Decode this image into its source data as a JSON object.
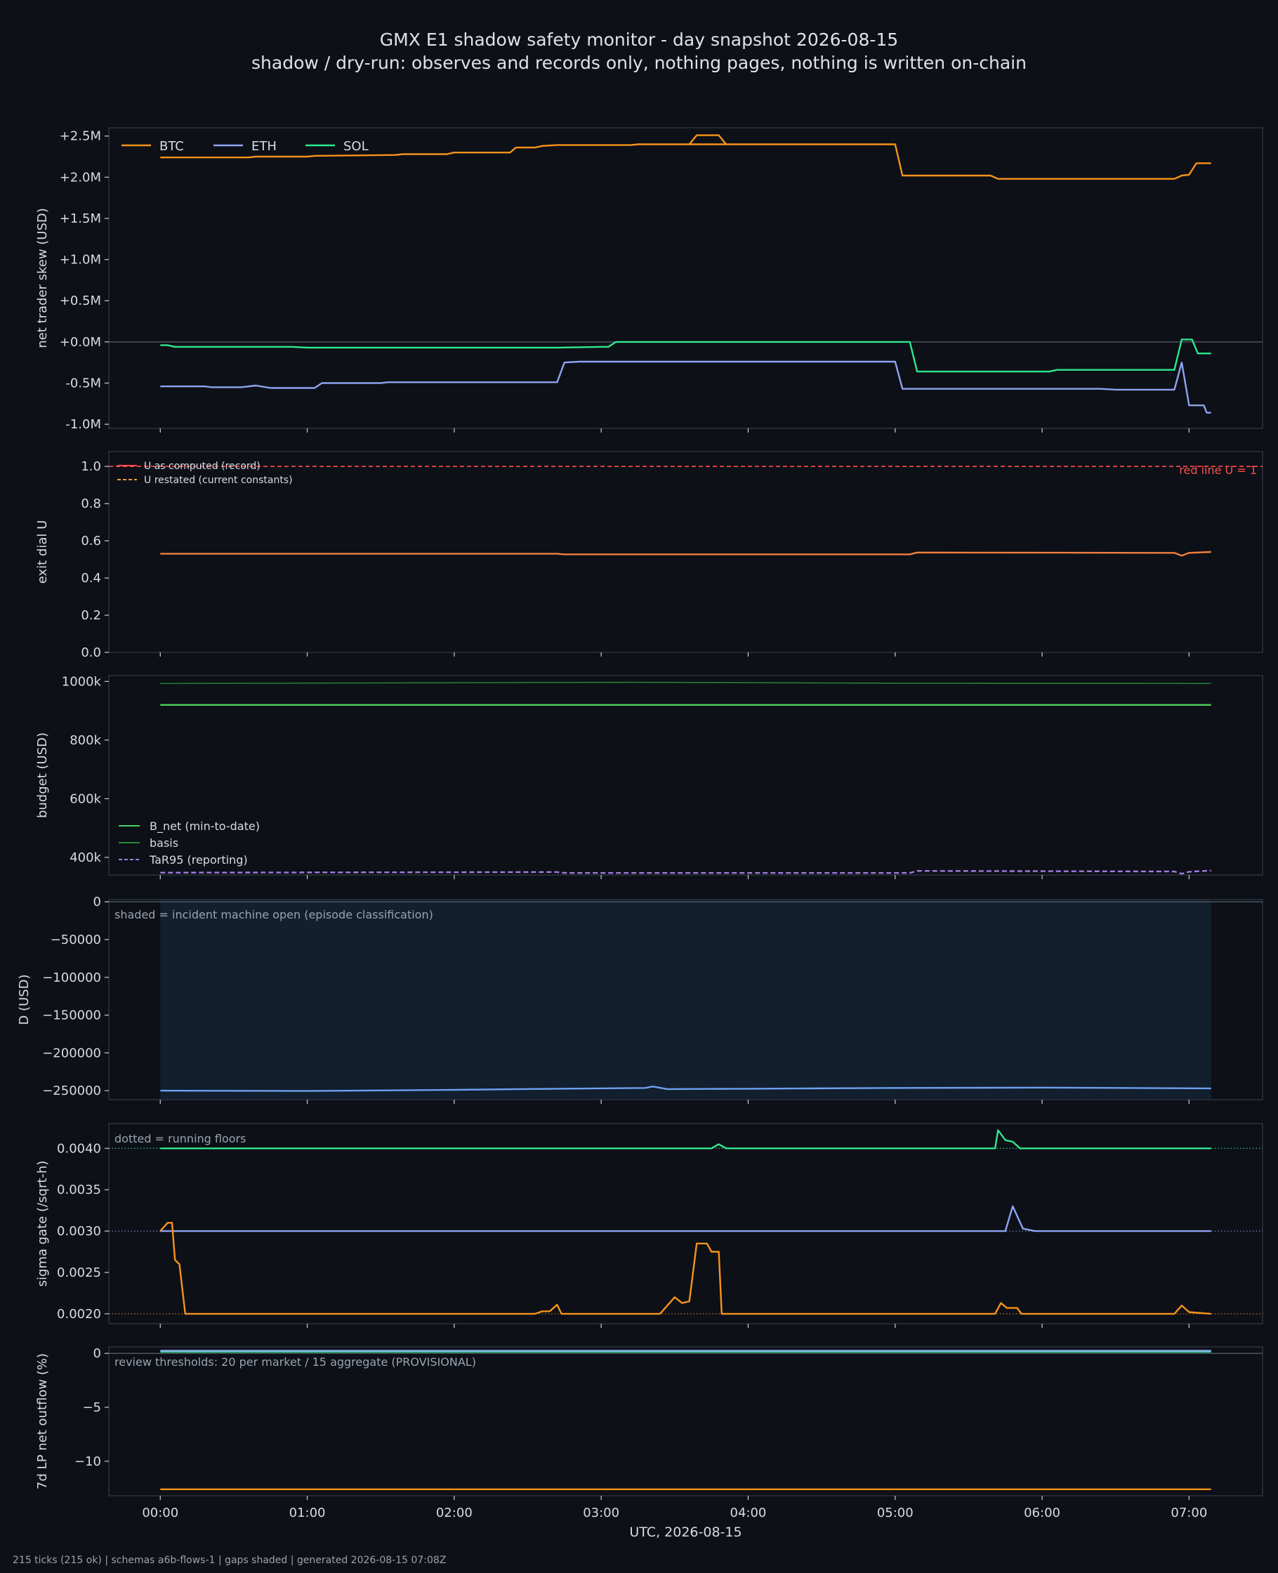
{
  "title": "GMX E1 shadow safety monitor - day snapshot 2026-08-15",
  "subtitle": "shadow / dry-run: observes and records only, nothing pages, nothing is written on-chain",
  "footer": "215 ticks (215 ok) | schemas a6b-flows-1 | gaps shaded | generated 2026-08-15 07:08Z",
  "colors": {
    "background": "#0d1017",
    "grid": "#3a4250",
    "text": "#d6dce4",
    "btc": "#f7931a",
    "eth": "#8fa3f0",
    "sol": "#2ee88f",
    "u_record": "#ff4d4d",
    "u_restated": "#f0a030",
    "u_main": "#f08040",
    "b_net": "#4cd060",
    "basis": "#2a8a3a",
    "tar95": "#a07ce0",
    "d_line": "#6fa0f0",
    "incident_shade": "#142232"
  },
  "chart_data": [
    {
      "id": "skew",
      "type": "line",
      "title": "",
      "xlabel": "",
      "ylabel": "net trader skew (USD)",
      "ylim": [
        -1.05,
        2.6
      ],
      "yticks": [
        -1.0,
        -0.5,
        0.0,
        0.5,
        1.0,
        1.5,
        2.0,
        2.5
      ],
      "ytick_labels": [
        "-1.0M",
        "-0.5M",
        "+0.0M",
        "+0.5M",
        "+1.0M",
        "+1.5M",
        "+2.0M",
        "+2.5M"
      ],
      "legend": "top-left",
      "zero_line": true,
      "series": [
        {
          "name": "BTC",
          "color_key": "btc",
          "points": [
            [
              0,
              2.24
            ],
            [
              0.6,
              2.24
            ],
            [
              0.65,
              2.25
            ],
            [
              1.0,
              2.25
            ],
            [
              1.05,
              2.26
            ],
            [
              1.6,
              2.27
            ],
            [
              1.65,
              2.28
            ],
            [
              1.95,
              2.28
            ],
            [
              2.0,
              2.3
            ],
            [
              2.38,
              2.3
            ],
            [
              2.42,
              2.36
            ],
            [
              2.55,
              2.36
            ],
            [
              2.6,
              2.38
            ],
            [
              2.7,
              2.39
            ],
            [
              3.2,
              2.39
            ],
            [
              3.25,
              2.4
            ],
            [
              3.9,
              2.4
            ],
            [
              3.6,
              2.4
            ],
            [
              3.65,
              2.51
            ],
            [
              3.8,
              2.51
            ],
            [
              3.85,
              2.4
            ],
            [
              5.0,
              2.4
            ],
            [
              5.05,
              2.02
            ],
            [
              5.65,
              2.02
            ],
            [
              5.7,
              1.98
            ],
            [
              6.9,
              1.98
            ],
            [
              6.95,
              2.02
            ],
            [
              7.0,
              2.03
            ],
            [
              7.05,
              2.17
            ],
            [
              7.15,
              2.17
            ]
          ]
        },
        {
          "name": "ETH",
          "color_key": "eth",
          "points": [
            [
              0,
              -0.54
            ],
            [
              0.3,
              -0.54
            ],
            [
              0.35,
              -0.55
            ],
            [
              0.55,
              -0.55
            ],
            [
              0.65,
              -0.53
            ],
            [
              0.75,
              -0.56
            ],
            [
              1.05,
              -0.56
            ],
            [
              1.1,
              -0.5
            ],
            [
              1.5,
              -0.5
            ],
            [
              1.55,
              -0.49
            ],
            [
              2.4,
              -0.49
            ],
            [
              2.7,
              -0.49
            ],
            [
              2.75,
              -0.25
            ],
            [
              2.85,
              -0.24
            ],
            [
              5.0,
              -0.24
            ],
            [
              5.05,
              -0.57
            ],
            [
              6.4,
              -0.57
            ],
            [
              6.5,
              -0.58
            ],
            [
              6.9,
              -0.58
            ],
            [
              6.95,
              -0.25
            ],
            [
              7.0,
              -0.77
            ],
            [
              7.1,
              -0.77
            ],
            [
              7.12,
              -0.86
            ],
            [
              7.15,
              -0.86
            ]
          ]
        },
        {
          "name": "SOL",
          "color_key": "sol",
          "points": [
            [
              0,
              -0.04
            ],
            [
              0.05,
              -0.04
            ],
            [
              0.1,
              -0.06
            ],
            [
              0.9,
              -0.06
            ],
            [
              1.0,
              -0.07
            ],
            [
              2.7,
              -0.07
            ],
            [
              3.0,
              -0.06
            ],
            [
              3.05,
              -0.06
            ],
            [
              3.1,
              0.0
            ],
            [
              5.1,
              0.0
            ],
            [
              5.15,
              -0.36
            ],
            [
              5.9,
              -0.36
            ],
            [
              6.05,
              -0.36
            ],
            [
              6.1,
              -0.34
            ],
            [
              6.9,
              -0.34
            ],
            [
              6.95,
              0.03
            ],
            [
              7.02,
              0.03
            ],
            [
              7.06,
              -0.14
            ],
            [
              7.15,
              -0.14
            ]
          ]
        }
      ]
    },
    {
      "id": "exit_dial",
      "type": "line",
      "ylabel": "exit dial U",
      "ylim": [
        0.0,
        1.08
      ],
      "yticks": [
        0.0,
        0.2,
        0.4,
        0.6,
        0.8,
        1.0
      ],
      "ytick_labels": [
        "0.0",
        "0.2",
        "0.4",
        "0.6",
        "0.8",
        "1.0"
      ],
      "legend": "top-left",
      "annotation": "red line U = 1",
      "reference_line": {
        "y": 1.0,
        "color_key": "u_record",
        "dash": true
      },
      "series": [
        {
          "name": "U as computed (record)",
          "color_key": "u_record",
          "legend_only": true
        },
        {
          "name": "U restated (current constants)",
          "color_key": "u_restated",
          "dash": true,
          "legend_only": true
        },
        {
          "color_key": "u_main",
          "points": [
            [
              0,
              0.53
            ],
            [
              2.7,
              0.53
            ],
            [
              2.75,
              0.527
            ],
            [
              5.1,
              0.527
            ],
            [
              5.15,
              0.537
            ],
            [
              6.9,
              0.535
            ],
            [
              6.95,
              0.52
            ],
            [
              7.0,
              0.535
            ],
            [
              7.15,
              0.54
            ]
          ]
        }
      ]
    },
    {
      "id": "budget",
      "type": "line",
      "ylabel": "budget (USD)",
      "ylim": [
        340000,
        1020000
      ],
      "yticks": [
        400000,
        600000,
        800000,
        1000000
      ],
      "ytick_labels": [
        "400k",
        "600k",
        "800k",
        "1000k"
      ],
      "legend": "bottom-left",
      "series": [
        {
          "name": "B_net (min-to-date)",
          "color_key": "b_net",
          "points": [
            [
              0,
              920000
            ],
            [
              7.15,
              920000
            ]
          ]
        },
        {
          "name": "basis",
          "color_key": "basis",
          "points": [
            [
              0,
              993000
            ],
            [
              3.2,
              997000
            ],
            [
              5.0,
              994000
            ],
            [
              7.15,
              993000
            ]
          ]
        },
        {
          "name": "TaR95 (reporting)",
          "color_key": "tar95",
          "dash": true,
          "points": [
            [
              0,
              348000
            ],
            [
              2.7,
              350000
            ],
            [
              2.75,
              347000
            ],
            [
              5.1,
              347000
            ],
            [
              5.15,
              354000
            ],
            [
              6.9,
              352000
            ],
            [
              6.95,
              344000
            ],
            [
              7.0,
              351000
            ],
            [
              7.15,
              355000
            ]
          ]
        }
      ]
    },
    {
      "id": "drawdown",
      "type": "line",
      "ylabel": "D (USD)",
      "ylim": [
        -262000,
        3000
      ],
      "yticks": [
        0,
        -50000,
        -100000,
        -150000,
        -200000,
        -250000
      ],
      "ytick_labels": [
        "0",
        "−50000",
        "−100000",
        "−150000",
        "−200000",
        "−250000"
      ],
      "annotation": "shaded = incident machine open (episode classification)",
      "shade": {
        "x0": 0,
        "x1": 7.15,
        "color_key": "incident_shade"
      },
      "zero_line": true,
      "series": [
        {
          "color_key": "d_line",
          "points": [
            [
              0,
              -250000
            ],
            [
              1.0,
              -250500
            ],
            [
              2.0,
              -249000
            ],
            [
              2.7,
              -247500
            ],
            [
              3.3,
              -246500
            ],
            [
              3.35,
              -244500
            ],
            [
              3.45,
              -248000
            ],
            [
              4.0,
              -247500
            ],
            [
              5.0,
              -246500
            ],
            [
              6.0,
              -246000
            ],
            [
              7.15,
              -247000
            ]
          ]
        }
      ]
    },
    {
      "id": "sigma",
      "type": "line",
      "ylabel": "sigma gate (/sqrt-h)",
      "ylim": [
        0.00188,
        0.0043
      ],
      "yticks": [
        0.002,
        0.0025,
        0.003,
        0.0035,
        0.004
      ],
      "ytick_labels": [
        "0.0020",
        "0.0025",
        "0.0030",
        "0.0035",
        "0.0040"
      ],
      "annotation": "dotted = running floors",
      "floors": [
        {
          "y": 0.004,
          "color_key": "sol"
        },
        {
          "y": 0.003,
          "color_key": "eth"
        },
        {
          "y": 0.002,
          "color_key": "btc"
        }
      ],
      "series": [
        {
          "color_key": "sol",
          "points": [
            [
              0,
              0.004
            ],
            [
              3.75,
              0.004
            ],
            [
              3.8,
              0.00405
            ],
            [
              3.85,
              0.004
            ],
            [
              5.68,
              0.004
            ],
            [
              5.7,
              0.00422
            ],
            [
              5.75,
              0.0041
            ],
            [
              5.8,
              0.00408
            ],
            [
              5.85,
              0.004
            ],
            [
              7.15,
              0.004
            ]
          ]
        },
        {
          "color_key": "eth",
          "points": [
            [
              0,
              0.003
            ],
            [
              5.75,
              0.003
            ],
            [
              5.8,
              0.0033
            ],
            [
              5.87,
              0.00303
            ],
            [
              5.95,
              0.003
            ],
            [
              7.15,
              0.003
            ]
          ]
        },
        {
          "color_key": "btc",
          "points": [
            [
              0,
              0.003
            ],
            [
              0.05,
              0.0031
            ],
            [
              0.08,
              0.0031
            ],
            [
              0.1,
              0.00265
            ],
            [
              0.13,
              0.0026
            ],
            [
              0.17,
              0.002
            ],
            [
              2.55,
              0.002
            ],
            [
              2.6,
              0.00203
            ],
            [
              2.65,
              0.00203
            ],
            [
              2.7,
              0.00211
            ],
            [
              2.73,
              0.002
            ],
            [
              3.4,
              0.002
            ],
            [
              3.5,
              0.0022
            ],
            [
              3.55,
              0.00213
            ],
            [
              3.6,
              0.00215
            ],
            [
              3.65,
              0.00285
            ],
            [
              3.72,
              0.00285
            ],
            [
              3.75,
              0.00275
            ],
            [
              3.8,
              0.00275
            ],
            [
              3.82,
              0.002
            ],
            [
              5.68,
              0.002
            ],
            [
              5.72,
              0.00213
            ],
            [
              5.76,
              0.00207
            ],
            [
              5.83,
              0.00207
            ],
            [
              5.86,
              0.002
            ],
            [
              6.9,
              0.002
            ],
            [
              6.95,
              0.0021
            ],
            [
              7.0,
              0.00202
            ],
            [
              7.15,
              0.002
            ]
          ]
        }
      ]
    },
    {
      "id": "lp_outflow",
      "type": "line",
      "ylabel": "7d LP net outflow (%)",
      "xlabel": "UTC, 2026-08-15",
      "ylim": [
        -13.2,
        0.6
      ],
      "yticks": [
        0,
        -5,
        -10
      ],
      "ytick_labels": [
        "0",
        "−5",
        "−10"
      ],
      "annotation": "review thresholds: 20 per market / 15 aggregate (PROVISIONAL)",
      "zero_line": true,
      "series": [
        {
          "color_key": "sol",
          "points": [
            [
              0,
              0.15
            ],
            [
              7.15,
              0.15
            ]
          ]
        },
        {
          "color_key": "eth",
          "points": [
            [
              0,
              0.25
            ],
            [
              7.15,
              0.25
            ]
          ]
        },
        {
          "color_key": "btc",
          "points": [
            [
              0,
              -12.6
            ],
            [
              7.15,
              -12.6
            ]
          ]
        }
      ]
    }
  ],
  "x_axis": {
    "range": [
      -0.35,
      7.5
    ],
    "ticks": [
      0,
      1,
      2,
      3,
      4,
      5,
      6,
      7
    ],
    "tick_labels": [
      "00:00",
      "01:00",
      "02:00",
      "03:00",
      "04:00",
      "05:00",
      "06:00",
      "07:00"
    ]
  }
}
